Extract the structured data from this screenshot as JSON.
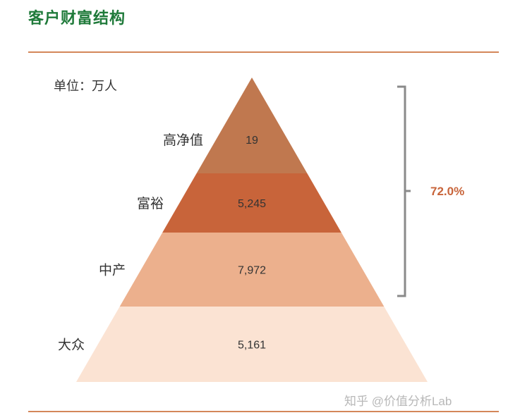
{
  "title": "客户财富结构",
  "unit_label": "单位：万人",
  "watermark": "知乎 @价值分析Lab",
  "chart_data": {
    "type": "pyramid",
    "unit": "万人",
    "categories": [
      "高净值",
      "富裕",
      "中产",
      "大众"
    ],
    "values": [
      19,
      5245,
      7972,
      5161
    ],
    "value_labels": [
      "19",
      "5,245",
      "7,972",
      "5,161"
    ],
    "colors": [
      "#c0784f",
      "#c8643a",
      "#ecb08d",
      "#fbe3d3"
    ],
    "bracket": {
      "label": "72.0%",
      "covers": [
        "高净值",
        "富裕",
        "中产"
      ],
      "color": "#c8643a"
    }
  }
}
